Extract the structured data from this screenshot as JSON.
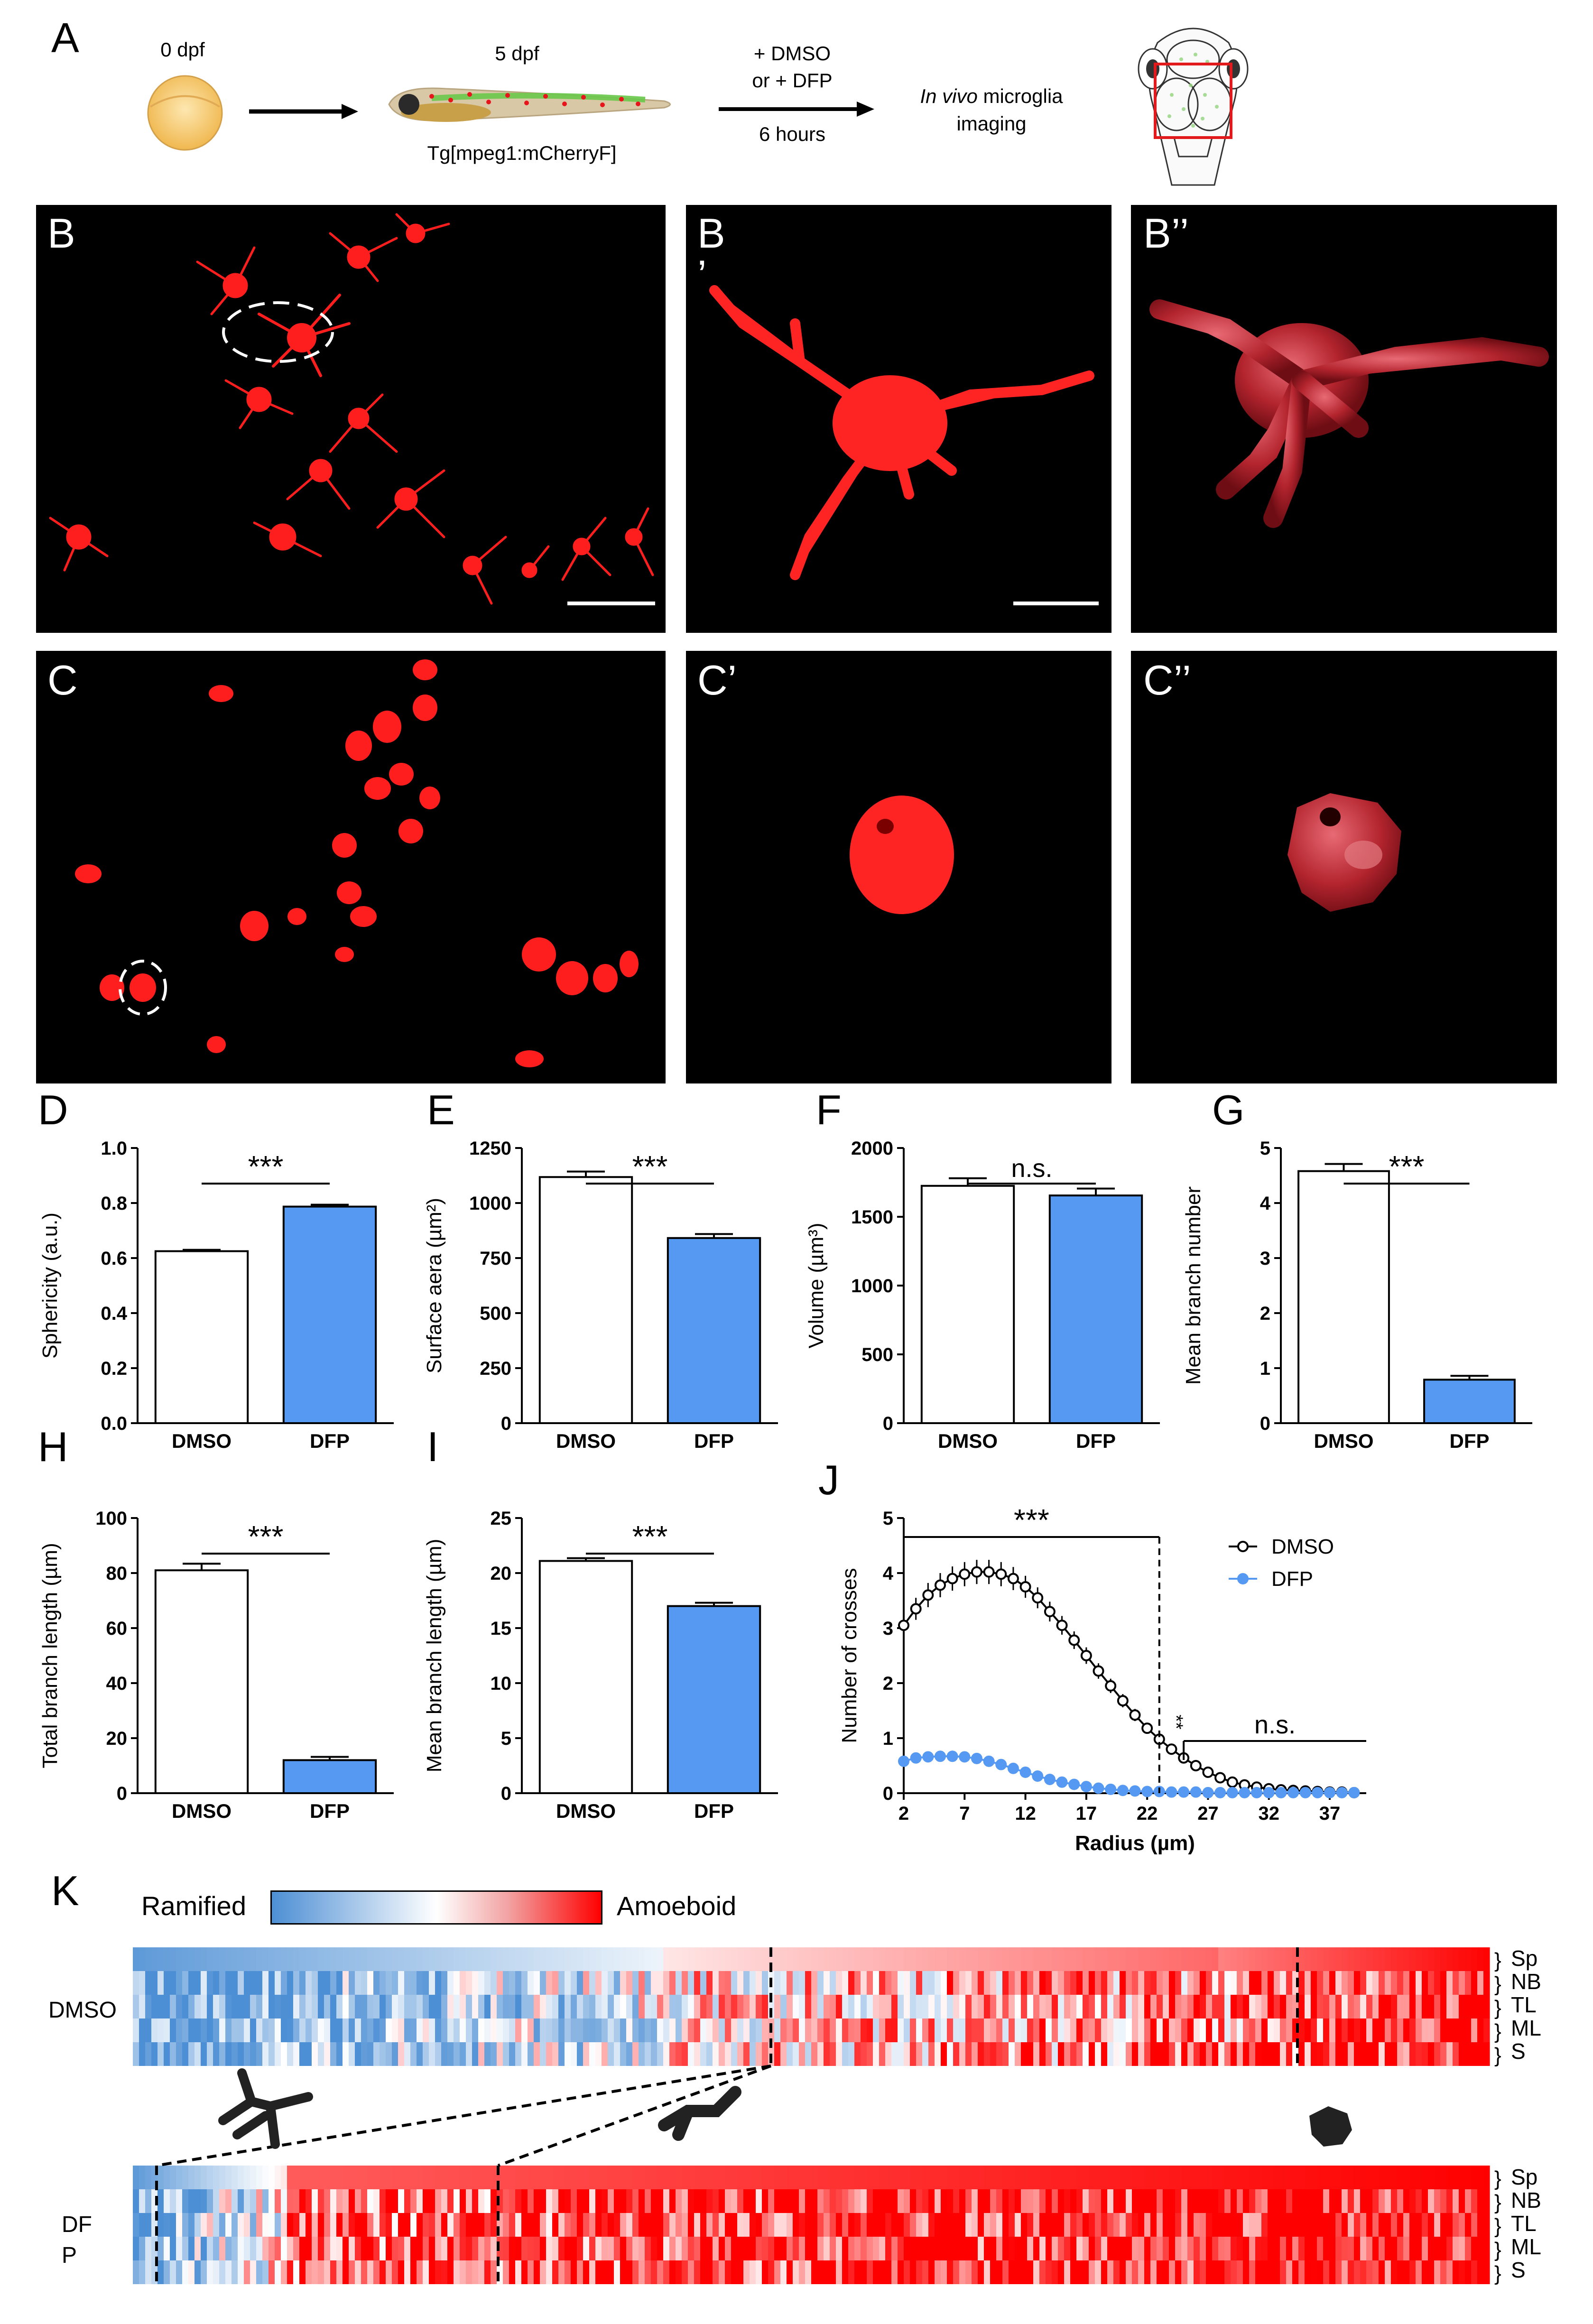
{
  "panel_A": {
    "letter": "A",
    "stage_1": "0 dpf",
    "stage_2": "5 dpf",
    "transgene": "Tg[mpeg1:mCherryF]",
    "treatment_line1": "+ DMSO",
    "treatment_line2": "or + DFP",
    "duration": "6 hours",
    "imaging_italic": "In vivo",
    "imaging_rest": " microglia",
    "imaging_line2": "imaging"
  },
  "micrograph_labels": {
    "B": "B",
    "B_prime_1": "B",
    "B_prime_2": "’",
    "B_double": "B’’",
    "C": "C",
    "C_prime": "C’",
    "C_double": "C’’"
  },
  "colors": {
    "dmso": "#ffffff",
    "dfp": "#5599f2",
    "microglia": "#ff2020",
    "render3d": "#b3242e"
  },
  "chart_data": [
    {
      "panel": "D",
      "type": "bar",
      "categories": [
        "DMSO",
        "DFP"
      ],
      "values": [
        0.625,
        0.787
      ],
      "errors": [
        0.005,
        0.007
      ],
      "ylabel": "Sphericity (a.u.)",
      "ylim": [
        0,
        1.0
      ],
      "yticks": [
        "0.0",
        "0.2",
        "0.4",
        "0.6",
        "0.8",
        "1.0"
      ],
      "significance": "***"
    },
    {
      "panel": "E",
      "type": "bar",
      "categories": [
        "DMSO",
        "DFP"
      ],
      "values": [
        1118,
        841
      ],
      "errors": [
        25,
        18
      ],
      "ylabel": "Surface aera (µm²)",
      "ylim": [
        0,
        1250
      ],
      "yticks": [
        "0",
        "250",
        "500",
        "750",
        "1000",
        "1250"
      ],
      "significance": "***"
    },
    {
      "panel": "F",
      "type": "bar",
      "categories": [
        "DMSO",
        "DFP"
      ],
      "values": [
        1725,
        1655
      ],
      "errors": [
        55,
        50
      ],
      "ylabel": "Volume (µm³)",
      "ylim": [
        0,
        2000
      ],
      "yticks": [
        "0",
        "500",
        "1000",
        "1500",
        "2000"
      ],
      "significance": "n.s."
    },
    {
      "panel": "G",
      "type": "bar",
      "categories": [
        "DMSO",
        "DFP"
      ],
      "values": [
        4.58,
        0.79
      ],
      "errors": [
        0.13,
        0.07
      ],
      "ylabel": "Mean branch number",
      "ylim": [
        0,
        5
      ],
      "yticks": [
        "0",
        "1",
        "2",
        "3",
        "4",
        "5"
      ],
      "significance": "***"
    },
    {
      "panel": "H",
      "type": "bar",
      "categories": [
        "DMSO",
        "DFP"
      ],
      "values": [
        81,
        12
      ],
      "errors": [
        2.4,
        1.2
      ],
      "ylabel": "Total branch length (µm)",
      "ylim": [
        0,
        100
      ],
      "yticks": [
        "0",
        "20",
        "40",
        "60",
        "80",
        "100"
      ],
      "significance": "***"
    },
    {
      "panel": "I",
      "type": "bar",
      "categories": [
        "DMSO",
        "DFP"
      ],
      "values": [
        21.1,
        17.0
      ],
      "errors": [
        0.25,
        0.3
      ],
      "ylabel": "Mean branch length (µm)",
      "ylim": [
        0,
        25
      ],
      "yticks": [
        "0",
        "5",
        "10",
        "15",
        "20",
        "25"
      ],
      "significance": "***"
    },
    {
      "panel": "J",
      "type": "line",
      "xlabel": "Radius (µm)",
      "ylabel": "Number of crosses",
      "xlim": [
        2,
        40
      ],
      "ylim": [
        0,
        5
      ],
      "xticks": [
        2,
        7,
        12,
        17,
        22,
        27,
        32,
        37
      ],
      "yticks": [
        0,
        1,
        2,
        3,
        4,
        5
      ],
      "x": [
        2,
        3,
        4,
        5,
        6,
        7,
        8,
        9,
        10,
        11,
        12,
        13,
        14,
        15,
        16,
        17,
        18,
        19,
        20,
        21,
        22,
        23,
        24,
        25,
        26,
        27,
        28,
        29,
        30,
        31,
        32,
        33,
        34,
        35,
        36,
        37,
        38,
        39
      ],
      "series": [
        {
          "name": "DMSO",
          "marker": "open-circle",
          "values": [
            3.05,
            3.35,
            3.6,
            3.78,
            3.9,
            3.98,
            4.02,
            4.02,
            3.98,
            3.9,
            3.75,
            3.55,
            3.3,
            3.05,
            2.78,
            2.5,
            2.22,
            1.95,
            1.68,
            1.42,
            1.18,
            0.98,
            0.8,
            0.64,
            0.5,
            0.38,
            0.28,
            0.2,
            0.15,
            0.11,
            0.08,
            0.06,
            0.05,
            0.04,
            0.03,
            0.02,
            0.02,
            0.01
          ],
          "errors": [
            0.18,
            0.2,
            0.22,
            0.22,
            0.22,
            0.22,
            0.22,
            0.22,
            0.22,
            0.21,
            0.2,
            0.19,
            0.18,
            0.17,
            0.16,
            0.15,
            0.14,
            0.13,
            0.12,
            0.11,
            0.1,
            0.09,
            0.08,
            0.07,
            0.06,
            0.05,
            0.04,
            0.03,
            0.03,
            0.02,
            0.02,
            0.01,
            0.01,
            0.01,
            0.01,
            0.01,
            0.01,
            0.01
          ]
        },
        {
          "name": "DFP",
          "marker": "filled-circle",
          "values": [
            0.58,
            0.64,
            0.66,
            0.67,
            0.67,
            0.66,
            0.63,
            0.58,
            0.52,
            0.45,
            0.38,
            0.31,
            0.25,
            0.2,
            0.16,
            0.12,
            0.09,
            0.07,
            0.05,
            0.04,
            0.03,
            0.03,
            0.02,
            0.02,
            0.02,
            0.01,
            0.01,
            0.01,
            0.01,
            0.01,
            0.01,
            0.01,
            0.01,
            0.01,
            0.01,
            0.01,
            0.01,
            0.01
          ],
          "errors": [
            0.05,
            0.06,
            0.06,
            0.06,
            0.06,
            0.06,
            0.06,
            0.05,
            0.05,
            0.05,
            0.04,
            0.04,
            0.03,
            0.03,
            0.03,
            0.02,
            0.02,
            0.02,
            0.01,
            0.01,
            0.01,
            0.01,
            0.01,
            0.01,
            0.01,
            0.01,
            0.01,
            0.01,
            0.01,
            0.01,
            0.01,
            0.01,
            0.01,
            0.01,
            0.01,
            0.01,
            0.01,
            0.01
          ]
        }
      ],
      "significance": [
        {
          "label": "***",
          "range": [
            2,
            23
          ]
        },
        {
          "label": "**",
          "at": 23
        },
        {
          "label": "n.s.",
          "range": [
            25,
            40
          ]
        }
      ],
      "legend": "top-right"
    }
  ],
  "panel_K": {
    "letter": "K",
    "scale_left": "Ramified",
    "scale_right": "Amoeboid",
    "group_1": "DMSO",
    "group_2_line1": "DF",
    "group_2_line2": "P",
    "row_labels": [
      "Sp",
      "NB",
      "TL",
      "ML",
      "S"
    ]
  }
}
